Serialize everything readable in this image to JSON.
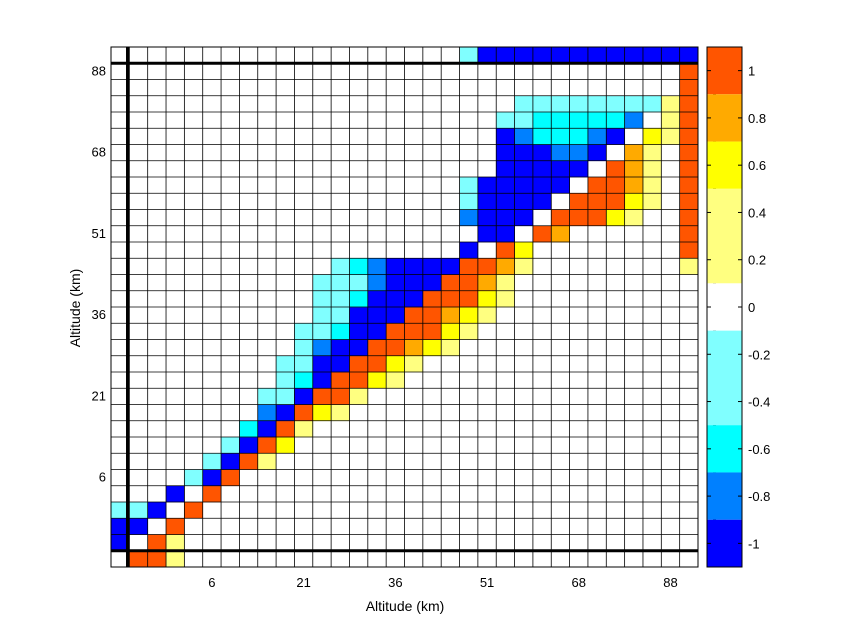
{
  "chart_data": {
    "type": "heatmap",
    "title": "",
    "xlabel": "Altitude (km)",
    "ylabel": "Altitude (km)",
    "n_cells": 32,
    "x_ticks": [
      {
        "label": "6",
        "cell": 5
      },
      {
        "label": "21",
        "cell": 10
      },
      {
        "label": "36",
        "cell": 15
      },
      {
        "label": "51",
        "cell": 20
      },
      {
        "label": "68",
        "cell": 25
      },
      {
        "label": "88",
        "cell": 30
      }
    ],
    "y_ticks": [
      {
        "label": "6",
        "cell": 5
      },
      {
        "label": "21",
        "cell": 10
      },
      {
        "label": "36",
        "cell": 15
      },
      {
        "label": "51",
        "cell": 20
      },
      {
        "label": "68",
        "cell": 25
      },
      {
        "label": "88",
        "cell": 30
      }
    ],
    "highlight_lines": {
      "x_cells": [
        1,
        33
      ],
      "y_cells": [
        1,
        31
      ]
    },
    "colorbar": {
      "range": [
        -1.1,
        1.1
      ],
      "tick_labels": [
        "1",
        "0.8",
        "0.6",
        "0.4",
        "0.2",
        "0",
        "-0.2",
        "-0.4",
        "-0.6",
        "-0.8",
        "-1"
      ],
      "tick_values": [
        1,
        0.8,
        0.6,
        0.4,
        0.2,
        0,
        -0.2,
        -0.4,
        -0.6,
        -0.8,
        -1
      ],
      "levels": [
        {
          "from": 0.9,
          "to": 1.1,
          "color": "#ff5500"
        },
        {
          "from": 0.7,
          "to": 0.9,
          "color": "#ffaa00"
        },
        {
          "from": 0.5,
          "to": 0.7,
          "color": "#ffff00"
        },
        {
          "from": 0.1,
          "to": 0.5,
          "color": "#ffff80"
        },
        {
          "from": -0.1,
          "to": 0.1,
          "color": "#ffffff"
        },
        {
          "from": -0.5,
          "to": -0.1,
          "color": "#80ffff"
        },
        {
          "from": -0.7,
          "to": -0.5,
          "color": "#00ffff"
        },
        {
          "from": -0.9,
          "to": -0.7,
          "color": "#0080ff"
        },
        {
          "from": -1.1,
          "to": -0.9,
          "color": "#0000ff"
        }
      ]
    },
    "cells": [
      [
        0,
        0,
        0
      ],
      [
        0,
        1,
        1
      ],
      [
        0,
        2,
        1
      ],
      [
        0,
        3,
        0.3
      ],
      [
        1,
        0,
        -1
      ],
      [
        1,
        1,
        0
      ],
      [
        1,
        2,
        1
      ],
      [
        1,
        3,
        0.3
      ],
      [
        2,
        0,
        -1
      ],
      [
        2,
        1,
        -1
      ],
      [
        2,
        2,
        0
      ],
      [
        2,
        3,
        1
      ],
      [
        3,
        0,
        -0.3
      ],
      [
        3,
        1,
        -0.3
      ],
      [
        3,
        2,
        -1
      ],
      [
        3,
        3,
        0
      ],
      [
        3,
        4,
        1
      ],
      [
        4,
        3,
        -1
      ],
      [
        4,
        4,
        0
      ],
      [
        4,
        5,
        1
      ],
      [
        5,
        4,
        -0.3
      ],
      [
        5,
        5,
        -1
      ],
      [
        5,
        6,
        1
      ],
      [
        6,
        5,
        -0.3
      ],
      [
        6,
        6,
        -1
      ],
      [
        6,
        7,
        1
      ],
      [
        6,
        8,
        0.3
      ],
      [
        7,
        6,
        -0.3
      ],
      [
        7,
        7,
        -1
      ],
      [
        7,
        8,
        1
      ],
      [
        7,
        9,
        0.6
      ],
      [
        8,
        7,
        -0.6
      ],
      [
        8,
        8,
        -1
      ],
      [
        8,
        9,
        1
      ],
      [
        8,
        10,
        0.3
      ],
      [
        9,
        8,
        -0.8
      ],
      [
        9,
        9,
        -1
      ],
      [
        9,
        10,
        1
      ],
      [
        9,
        11,
        0.6
      ],
      [
        9,
        12,
        0.3
      ],
      [
        10,
        8,
        -0.3
      ],
      [
        10,
        9,
        -0.3
      ],
      [
        10,
        10,
        -1
      ],
      [
        10,
        11,
        1
      ],
      [
        10,
        12,
        1
      ],
      [
        10,
        13,
        0.3
      ],
      [
        11,
        9,
        -0.3
      ],
      [
        11,
        10,
        -0.6
      ],
      [
        11,
        11,
        -1
      ],
      [
        11,
        12,
        1
      ],
      [
        11,
        13,
        1
      ],
      [
        11,
        14,
        0.6
      ],
      [
        11,
        15,
        0.3
      ],
      [
        12,
        9,
        -0.3
      ],
      [
        12,
        10,
        -0.3
      ],
      [
        12,
        11,
        -1
      ],
      [
        12,
        12,
        -1
      ],
      [
        12,
        13,
        1
      ],
      [
        12,
        14,
        1
      ],
      [
        12,
        15,
        0.6
      ],
      [
        12,
        16,
        0.3
      ],
      [
        13,
        10,
        -0.3
      ],
      [
        13,
        11,
        -0.8
      ],
      [
        13,
        12,
        -1
      ],
      [
        13,
        13,
        -1
      ],
      [
        13,
        14,
        1
      ],
      [
        13,
        15,
        1
      ],
      [
        13,
        16,
        0.8
      ],
      [
        13,
        17,
        0.6
      ],
      [
        13,
        18,
        0.3
      ],
      [
        14,
        10,
        -0.3
      ],
      [
        14,
        11,
        -0.3
      ],
      [
        14,
        12,
        -0.6
      ],
      [
        14,
        13,
        -1
      ],
      [
        14,
        14,
        -1
      ],
      [
        14,
        15,
        1
      ],
      [
        14,
        16,
        1
      ],
      [
        14,
        17,
        1
      ],
      [
        14,
        18,
        0.6
      ],
      [
        14,
        19,
        0.3
      ],
      [
        15,
        11,
        -0.3
      ],
      [
        15,
        12,
        -0.3
      ],
      [
        15,
        13,
        -1
      ],
      [
        15,
        14,
        -1
      ],
      [
        15,
        15,
        -1
      ],
      [
        15,
        16,
        1
      ],
      [
        15,
        17,
        1
      ],
      [
        15,
        18,
        0.8
      ],
      [
        15,
        19,
        0.6
      ],
      [
        15,
        20,
        0.3
      ],
      [
        16,
        11,
        -0.3
      ],
      [
        16,
        12,
        -0.3
      ],
      [
        16,
        13,
        -0.6
      ],
      [
        16,
        14,
        -1
      ],
      [
        16,
        15,
        -1
      ],
      [
        16,
        16,
        -1
      ],
      [
        16,
        17,
        1
      ],
      [
        16,
        18,
        1
      ],
      [
        16,
        19,
        1
      ],
      [
        16,
        20,
        0.6
      ],
      [
        16,
        21,
        0.3
      ],
      [
        17,
        11,
        -0.3
      ],
      [
        17,
        12,
        -0.3
      ],
      [
        17,
        13,
        -0.3
      ],
      [
        17,
        14,
        -0.8
      ],
      [
        17,
        15,
        -1
      ],
      [
        17,
        16,
        -1
      ],
      [
        17,
        17,
        -1
      ],
      [
        17,
        18,
        1
      ],
      [
        17,
        19,
        1
      ],
      [
        17,
        20,
        0.8
      ],
      [
        17,
        21,
        0.3
      ],
      [
        18,
        12,
        -0.3
      ],
      [
        18,
        13,
        -0.6
      ],
      [
        18,
        14,
        -0.8
      ],
      [
        18,
        15,
        -1
      ],
      [
        18,
        16,
        -1
      ],
      [
        18,
        17,
        -1
      ],
      [
        18,
        18,
        -1
      ],
      [
        18,
        19,
        1
      ],
      [
        18,
        20,
        1
      ],
      [
        18,
        21,
        0.8
      ],
      [
        18,
        22,
        0.3
      ],
      [
        19,
        19,
        -1
      ],
      [
        19,
        20,
        0
      ],
      [
        19,
        21,
        1
      ],
      [
        19,
        22,
        0.6
      ],
      [
        20,
        20,
        -1
      ],
      [
        20,
        21,
        -1
      ],
      [
        20,
        22,
        0
      ],
      [
        20,
        23,
        1
      ],
      [
        20,
        24,
        0.8
      ],
      [
        21,
        19,
        -0.8
      ],
      [
        21,
        20,
        -1
      ],
      [
        21,
        21,
        -1
      ],
      [
        21,
        22,
        -1
      ],
      [
        21,
        23,
        0
      ],
      [
        21,
        24,
        1
      ],
      [
        21,
        25,
        1
      ],
      [
        21,
        26,
        1
      ],
      [
        21,
        27,
        0.6
      ],
      [
        21,
        28,
        0.3
      ],
      [
        22,
        19,
        -0.3
      ],
      [
        22,
        20,
        -1
      ],
      [
        22,
        21,
        -1
      ],
      [
        22,
        22,
        -1
      ],
      [
        22,
        23,
        -1
      ],
      [
        22,
        24,
        0
      ],
      [
        22,
        25,
        1
      ],
      [
        22,
        26,
        1
      ],
      [
        22,
        27,
        1
      ],
      [
        22,
        28,
        0.6
      ],
      [
        22,
        29,
        0.3
      ],
      [
        23,
        19,
        -0.3
      ],
      [
        23,
        20,
        -1
      ],
      [
        23,
        21,
        -1
      ],
      [
        23,
        22,
        -1
      ],
      [
        23,
        23,
        -1
      ],
      [
        23,
        24,
        -1
      ],
      [
        23,
        25,
        0
      ],
      [
        23,
        26,
        1
      ],
      [
        23,
        27,
        1
      ],
      [
        23,
        28,
        0.8
      ],
      [
        23,
        29,
        0.3
      ],
      [
        24,
        21,
        -1
      ],
      [
        24,
        22,
        -1
      ],
      [
        24,
        23,
        -1
      ],
      [
        24,
        24,
        -1
      ],
      [
        24,
        25,
        -1
      ],
      [
        24,
        26,
        0
      ],
      [
        24,
        27,
        1
      ],
      [
        24,
        28,
        0.8
      ],
      [
        24,
        29,
        0.3
      ],
      [
        25,
        21,
        -1
      ],
      [
        25,
        22,
        -1
      ],
      [
        25,
        23,
        -1
      ],
      [
        25,
        24,
        -0.8
      ],
      [
        25,
        25,
        -0.8
      ],
      [
        25,
        26,
        -1
      ],
      [
        25,
        27,
        0
      ],
      [
        25,
        28,
        0.8
      ],
      [
        25,
        29,
        0.3
      ],
      [
        26,
        21,
        -1
      ],
      [
        26,
        22,
        -0.8
      ],
      [
        26,
        23,
        -0.6
      ],
      [
        26,
        24,
        -0.6
      ],
      [
        26,
        25,
        -0.6
      ],
      [
        26,
        26,
        -0.8
      ],
      [
        26,
        27,
        -1
      ],
      [
        26,
        28,
        0
      ],
      [
        26,
        29,
        0.6
      ],
      [
        26,
        30,
        0.3
      ],
      [
        27,
        21,
        -0.3
      ],
      [
        27,
        22,
        -0.3
      ],
      [
        27,
        23,
        -0.6
      ],
      [
        27,
        24,
        -0.6
      ],
      [
        27,
        25,
        -0.6
      ],
      [
        27,
        26,
        -0.6
      ],
      [
        27,
        27,
        -0.6
      ],
      [
        27,
        28,
        -0.8
      ],
      [
        27,
        29,
        0
      ],
      [
        27,
        30,
        0.3
      ],
      [
        28,
        22,
        -0.3
      ],
      [
        28,
        23,
        -0.3
      ],
      [
        28,
        24,
        -0.3
      ],
      [
        28,
        25,
        -0.3
      ],
      [
        28,
        26,
        -0.3
      ],
      [
        28,
        27,
        -0.3
      ],
      [
        28,
        28,
        -0.3
      ],
      [
        28,
        29,
        -0.3
      ],
      [
        28,
        30,
        0.3
      ],
      [
        31,
        19,
        -0.3
      ],
      [
        31,
        20,
        -1
      ],
      [
        31,
        21,
        -1
      ],
      [
        31,
        22,
        -1
      ],
      [
        31,
        23,
        -1
      ],
      [
        31,
        24,
        -1
      ],
      [
        31,
        25,
        -1
      ],
      [
        31,
        26,
        -1
      ],
      [
        31,
        27,
        -1
      ],
      [
        31,
        28,
        -1
      ],
      [
        31,
        29,
        -1
      ],
      [
        31,
        30,
        -1
      ],
      [
        31,
        31,
        -1
      ],
      [
        18,
        31,
        0.3
      ],
      [
        19,
        31,
        1
      ],
      [
        20,
        31,
        1
      ],
      [
        21,
        31,
        1
      ],
      [
        22,
        31,
        1
      ],
      [
        23,
        31,
        1
      ],
      [
        24,
        31,
        1
      ],
      [
        25,
        31,
        1
      ],
      [
        26,
        31,
        1
      ],
      [
        27,
        31,
        1
      ],
      [
        28,
        31,
        1
      ],
      [
        29,
        31,
        1
      ],
      [
        30,
        31,
        1
      ]
    ]
  }
}
